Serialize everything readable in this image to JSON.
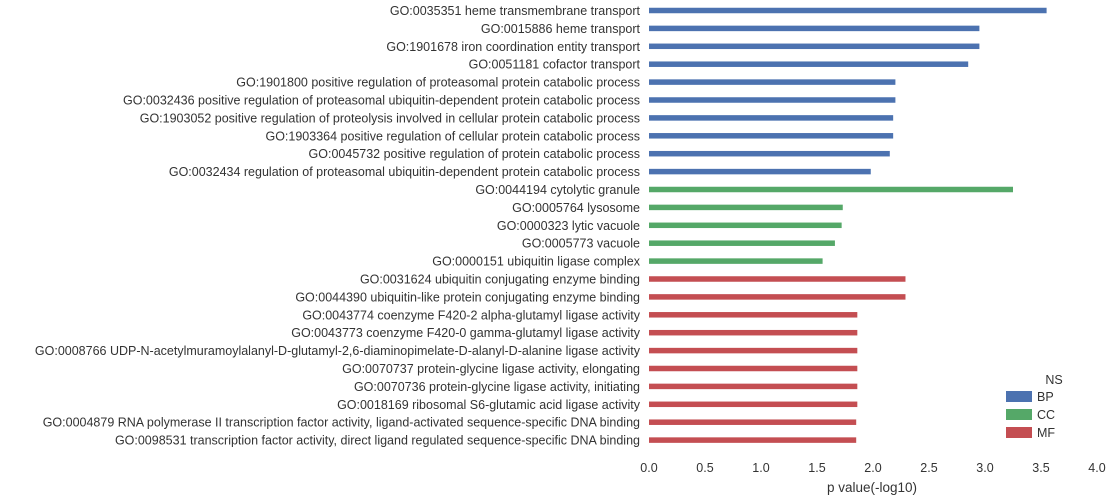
{
  "chart_data": {
    "type": "bar",
    "orientation": "horizontal",
    "xlabel": "p value(-log10)",
    "ylabel": "",
    "xlim": [
      0,
      4
    ],
    "xticks": [
      "0.0",
      "0.5",
      "1.0",
      "1.5",
      "2.0",
      "2.5",
      "3.0",
      "3.5",
      "4.0"
    ],
    "grid": false,
    "legend": {
      "title": "NS",
      "placement": "bottom-right",
      "entries": [
        {
          "label": "BP",
          "color": "#4c72b0"
        },
        {
          "label": "CC",
          "color": "#55a868"
        },
        {
          "label": "MF",
          "color": "#c44e52"
        }
      ]
    },
    "categories": [
      "GO:0035351 heme transmembrane transport",
      "GO:0015886 heme transport",
      "GO:1901678 iron coordination entity transport",
      "GO:0051181 cofactor transport",
      "GO:1901800 positive regulation of proteasomal protein catabolic process",
      "GO:0032436 positive regulation of proteasomal ubiquitin-dependent protein catabolic process",
      "GO:1903052 positive regulation of proteolysis involved in cellular protein catabolic process",
      "GO:1903364 positive regulation of cellular protein catabolic process",
      "GO:0045732 positive regulation of protein catabolic process",
      "GO:0032434 regulation of proteasomal ubiquitin-dependent protein catabolic process",
      "GO:0044194 cytolytic granule",
      "GO:0005764 lysosome",
      "GO:0000323 lytic vacuole",
      "GO:0005773 vacuole",
      "GO:0000151 ubiquitin ligase complex",
      "GO:0031624 ubiquitin conjugating enzyme binding",
      "GO:0044390 ubiquitin-like protein conjugating enzyme binding",
      "GO:0043774 coenzyme F420-2 alpha-glutamyl ligase activity",
      "GO:0043773 coenzyme F420-0 gamma-glutamyl ligase activity",
      "GO:0008766 UDP-N-acetylmuramoylalanyl-D-glutamyl-2,6-diaminopimelate-D-alanyl-D-alanine ligase activity",
      "GO:0070737 protein-glycine ligase activity, elongating",
      "GO:0070736 protein-glycine ligase activity, initiating",
      "GO:0018169 ribosomal S6-glutamic acid ligase activity",
      "GO:0004879 RNA polymerase II transcription factor activity, ligand-activated sequence-specific DNA binding",
      "GO:0098531 transcription factor activity, direct ligand regulated sequence-specific DNA binding"
    ],
    "namespace": [
      "BP",
      "BP",
      "BP",
      "BP",
      "BP",
      "BP",
      "BP",
      "BP",
      "BP",
      "BP",
      "CC",
      "CC",
      "CC",
      "CC",
      "CC",
      "MF",
      "MF",
      "MF",
      "MF",
      "MF",
      "MF",
      "MF",
      "MF",
      "MF",
      "MF"
    ],
    "values": [
      3.55,
      2.95,
      2.95,
      2.85,
      2.2,
      2.2,
      2.18,
      2.18,
      2.15,
      1.98,
      3.25,
      1.73,
      1.72,
      1.66,
      1.55,
      2.29,
      2.29,
      1.86,
      1.86,
      1.86,
      1.86,
      1.86,
      1.86,
      1.85,
      1.85
    ]
  }
}
